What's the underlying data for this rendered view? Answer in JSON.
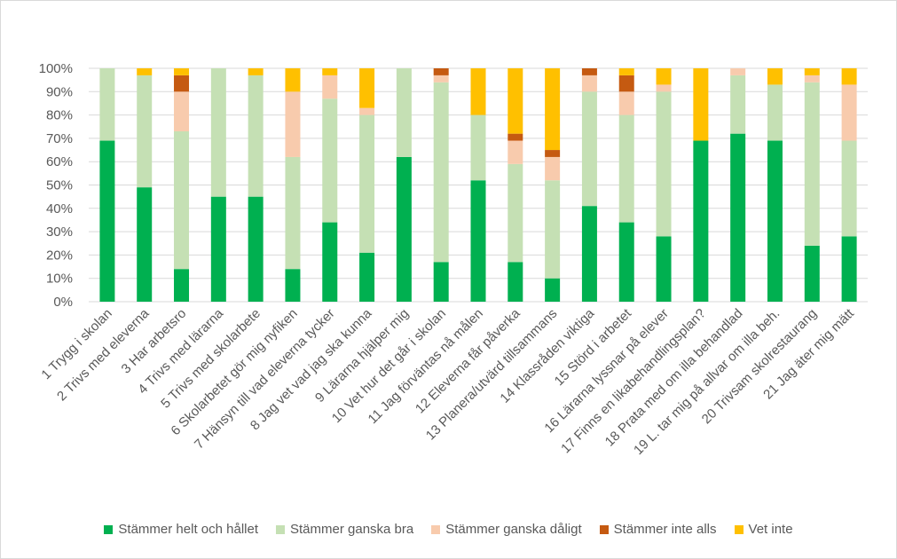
{
  "chart_data": {
    "type": "bar",
    "stacked": true,
    "percent": true,
    "categories": [
      "1 Trygg i skolan",
      "2 Trivs med eleverna",
      "3 Har arbetsro",
      "4 Trivs med lärarna",
      "5 Trivs med skolarbete",
      "6 Skolarbetet gör mig nyfiken",
      "7 Hänsyn till vad eleverna tycker",
      "8  Jag vet vad jag ska kunna",
      "9 Lärarna hjälper mig",
      "10 Vet hur det går i skolan",
      "11 Jag förväntas nå målen",
      "12 Eleverna får påverka",
      "13 Planera/utvärd tillsammans",
      "14 Klassråden viktiga",
      "15 Störd i arbetet",
      "16 Lärarna lyssnar på elever",
      "17 Finns en likabehandlingsplan?",
      "18  Prata med om illa behandlad",
      "19 L. tar mig på allvar om illa beh.",
      "20 Trivsam skolrestaurang",
      "21  Jag  äter mig mätt"
    ],
    "series": [
      {
        "name": "Stämmer helt och hållet",
        "color": "#00b050",
        "values": [
          69,
          49,
          14,
          45,
          45,
          14,
          34,
          21,
          62,
          17,
          52,
          17,
          10,
          41,
          34,
          28,
          69,
          72,
          69,
          24,
          28
        ]
      },
      {
        "name": "Stämmer ganska bra",
        "color": "#c5e0b4",
        "values": [
          31,
          48,
          59,
          55,
          52,
          48,
          53,
          59,
          38,
          77,
          28,
          42,
          42,
          49,
          46,
          62,
          0,
          25,
          24,
          70,
          41
        ]
      },
      {
        "name": "Stämmer ganska dåligt",
        "color": "#f8cbad",
        "values": [
          0,
          0,
          17,
          0,
          0,
          28,
          10,
          3,
          0,
          3,
          0,
          10,
          10,
          7,
          10,
          3,
          0,
          3,
          0,
          3,
          24
        ]
      },
      {
        "name": "Stämmer inte alls",
        "color": "#c55a11",
        "values": [
          0,
          0,
          7,
          0,
          0,
          0,
          0,
          0,
          0,
          3,
          0,
          3,
          3,
          3,
          7,
          0,
          0,
          0,
          0,
          0,
          0
        ]
      },
      {
        "name": "Vet inte",
        "color": "#ffc000",
        "values": [
          0,
          3,
          3,
          0,
          3,
          10,
          3,
          17,
          0,
          0,
          20,
          28,
          35,
          0,
          3,
          7,
          31,
          0,
          7,
          3,
          7
        ]
      }
    ],
    "yticks": [
      "0%",
      "10%",
      "20%",
      "30%",
      "40%",
      "50%",
      "60%",
      "70%",
      "80%",
      "90%",
      "100%"
    ],
    "ylim": [
      0,
      100
    ],
    "title": "",
    "xlabel": "",
    "ylabel": "",
    "legend_position": "bottom",
    "grid": true
  }
}
